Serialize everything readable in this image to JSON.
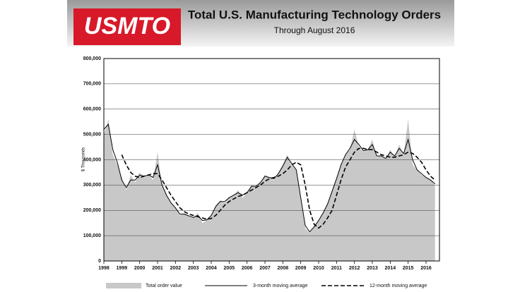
{
  "chart_data": {
    "type": "area-line",
    "logo": "USMTO",
    "title": "Total U.S. Manufacturing Technology Orders",
    "subtitle": "Through August 2016",
    "y_label": "$ Thousands",
    "x": [
      1998,
      1998.25,
      1998.5,
      1998.75,
      1999,
      1999.25,
      1999.5,
      1999.75,
      2000,
      2000.25,
      2000.5,
      2000.75,
      2001,
      2001.25,
      2001.5,
      2001.75,
      2002,
      2002.25,
      2002.5,
      2002.75,
      2003,
      2003.25,
      2003.5,
      2003.75,
      2004,
      2004.25,
      2004.5,
      2004.75,
      2005,
      2005.25,
      2005.5,
      2005.75,
      2006,
      2006.25,
      2006.5,
      2006.75,
      2007,
      2007.25,
      2007.5,
      2007.75,
      2008,
      2008.25,
      2008.5,
      2008.75,
      2009,
      2009.25,
      2009.5,
      2009.75,
      2010,
      2010.25,
      2010.5,
      2010.75,
      2011,
      2011.25,
      2011.5,
      2011.75,
      2012,
      2012.25,
      2012.5,
      2012.75,
      2013,
      2013.25,
      2013.5,
      2013.75,
      2014,
      2014.25,
      2014.5,
      2014.75,
      2015,
      2015.25,
      2015.5,
      2015.75,
      2016,
      2016.25,
      2016.5
    ],
    "series": [
      {
        "name": "Total order value",
        "style": "area",
        "color": "#c8c8c8",
        "values": [
          500000,
          560000,
          420000,
          380000,
          330000,
          280000,
          340000,
          310000,
          350000,
          330000,
          340000,
          320000,
          430000,
          300000,
          260000,
          230000,
          210000,
          180000,
          190000,
          175000,
          170000,
          190000,
          150000,
          160000,
          180000,
          220000,
          240000,
          230000,
          250000,
          260000,
          280000,
          250000,
          270000,
          300000,
          290000,
          310000,
          340000,
          330000,
          320000,
          350000,
          380000,
          420000,
          380000,
          360000,
          240000,
          130000,
          110000,
          140000,
          160000,
          190000,
          230000,
          280000,
          330000,
          380000,
          420000,
          440000,
          520000,
          450000,
          430000,
          440000,
          480000,
          410000,
          420000,
          400000,
          440000,
          410000,
          460000,
          420000,
          560000,
          380000,
          360000,
          340000,
          330000,
          320000,
          300000
        ]
      },
      {
        "name": "3-month moving average",
        "style": "solid",
        "color": "#000000",
        "values": [
          520000,
          540000,
          440000,
          390000,
          320000,
          290000,
          320000,
          320000,
          340000,
          335000,
          340000,
          330000,
          380000,
          300000,
          260000,
          230000,
          210000,
          185000,
          185000,
          178000,
          172000,
          180000,
          160000,
          162000,
          180000,
          215000,
          235000,
          235000,
          250000,
          260000,
          270000,
          260000,
          270000,
          295000,
          295000,
          310000,
          335000,
          330000,
          325000,
          345000,
          375000,
          410000,
          385000,
          360000,
          250000,
          140000,
          115000,
          135000,
          160000,
          190000,
          225000,
          275000,
          325000,
          380000,
          420000,
          445000,
          480000,
          460000,
          435000,
          440000,
          460000,
          415000,
          415000,
          405000,
          430000,
          415000,
          445000,
          425000,
          480000,
          400000,
          360000,
          345000,
          330000,
          320000,
          305000
        ]
      },
      {
        "name": "12-month moving average",
        "style": "dashed",
        "color": "#000000",
        "values": [
          null,
          null,
          null,
          null,
          420000,
          380000,
          350000,
          335000,
          330000,
          335000,
          340000,
          345000,
          345000,
          320000,
          290000,
          260000,
          235000,
          210000,
          195000,
          185000,
          180000,
          175000,
          170000,
          165000,
          168000,
          180000,
          200000,
          220000,
          235000,
          245000,
          255000,
          260000,
          270000,
          280000,
          290000,
          300000,
          315000,
          325000,
          330000,
          335000,
          345000,
          360000,
          380000,
          390000,
          380000,
          300000,
          200000,
          145000,
          130000,
          145000,
          170000,
          200000,
          260000,
          320000,
          370000,
          400000,
          430000,
          445000,
          445000,
          440000,
          440000,
          430000,
          420000,
          415000,
          410000,
          410000,
          415000,
          420000,
          430000,
          425000,
          410000,
          390000,
          360000,
          335000,
          320000
        ]
      }
    ],
    "xlim": [
      1998,
      2016.75
    ],
    "xticks": [
      1998,
      1999,
      2000,
      2001,
      2002,
      2003,
      2004,
      2005,
      2006,
      2007,
      2008,
      2009,
      2010,
      2011,
      2012,
      2013,
      2014,
      2015,
      2016
    ],
    "ylim": [
      0,
      800000
    ],
    "yticks": [
      0,
      {
        "value": 100000,
        "label": "100,000"
      },
      {
        "value": 200000,
        "label": "200,000"
      },
      {
        "value": 300000,
        "label": "300,000"
      },
      {
        "value": 400000,
        "label": "400,000"
      },
      {
        "value": 500000,
        "label": "500,000"
      },
      {
        "value": 600000,
        "label": "600,000"
      },
      {
        "value": 700000,
        "label": "700,000"
      },
      {
        "value": 800000,
        "label": "800,000"
      }
    ],
    "grid": true
  }
}
